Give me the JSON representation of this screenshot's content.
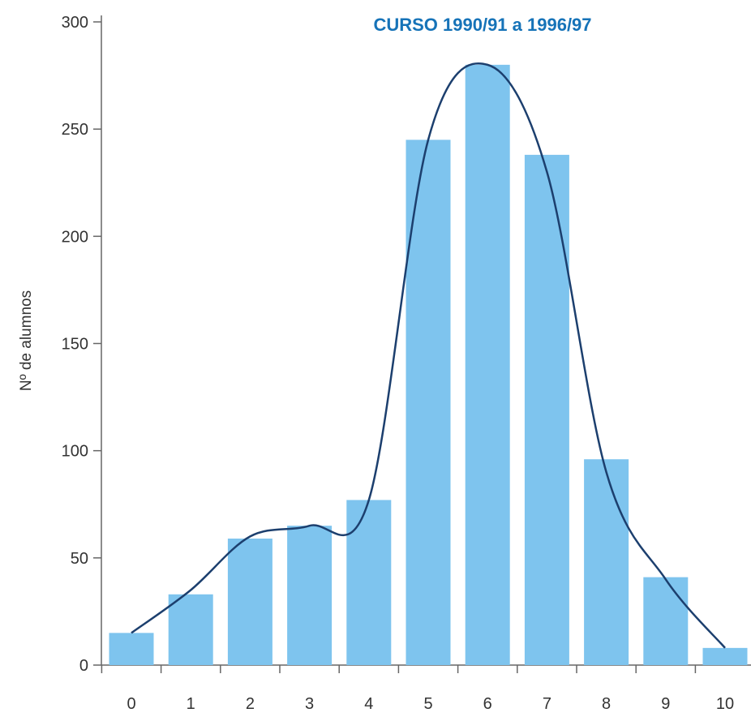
{
  "chart_data": {
    "type": "bar",
    "title": "CURSO 1990/91 a 1996/97",
    "ylabel": "Nº de alumnos",
    "xlabel": "",
    "categories": [
      "0",
      "1",
      "2",
      "3",
      "4",
      "5",
      "6",
      "7",
      "8",
      "9",
      "10"
    ],
    "values": [
      15,
      33,
      59,
      65,
      77,
      245,
      280,
      238,
      96,
      41,
      8
    ],
    "curve_values": [
      15,
      35,
      60,
      65,
      77,
      245,
      280,
      230,
      90,
      40,
      8
    ],
    "yticks": [
      "0",
      "50",
      "100",
      "150",
      "200",
      "250",
      "300"
    ],
    "ylim": [
      0,
      300
    ],
    "grid": false,
    "legend": "none",
    "colors": {
      "bar": "#7ec4ee",
      "curve": "#1c3f6e",
      "title": "#1673b8",
      "axis": "#666666"
    }
  }
}
